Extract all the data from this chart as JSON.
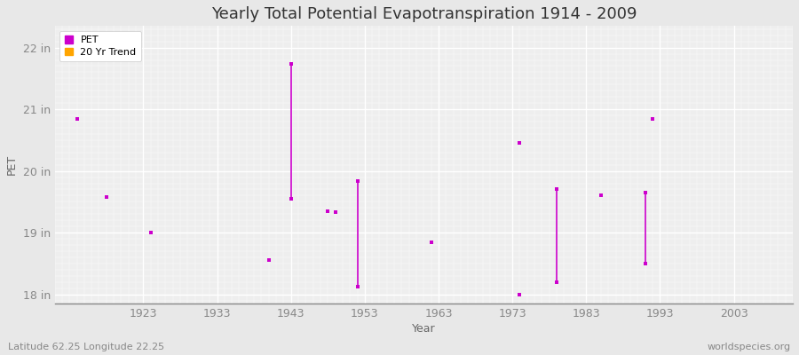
{
  "title": "Yearly Total Potential Evapotranspiration 1914 - 2009",
  "xlabel": "Year",
  "ylabel": "PET",
  "xlim": [
    1911,
    2011
  ],
  "ylim": [
    17.85,
    22.35
  ],
  "ytick_labels": [
    "18 in",
    "19 in",
    "20 in",
    "21 in",
    "22 in"
  ],
  "ytick_values": [
    18,
    19,
    20,
    21,
    22
  ],
  "xtick_values": [
    1923,
    1933,
    1943,
    1953,
    1963,
    1973,
    1983,
    1993,
    2003
  ],
  "fig_bg_color": "#e8e8e8",
  "plot_bg_color": "#eeeeee",
  "grid_major_color": "#ffffff",
  "grid_minor_color": "#dcdcdc",
  "pet_color": "#cc00cc",
  "trend_color": "#ffa500",
  "pet_points": [
    [
      1914,
      20.85
    ],
    [
      1918,
      19.58
    ],
    [
      1924,
      19.0
    ],
    [
      1940,
      18.55
    ],
    [
      1943,
      21.73
    ],
    [
      1943,
      19.55
    ],
    [
      1948,
      19.35
    ],
    [
      1949,
      19.33
    ],
    [
      1952,
      19.83
    ],
    [
      1952,
      18.12
    ],
    [
      1962,
      18.85
    ],
    [
      1974,
      18.0
    ],
    [
      1974,
      20.45
    ],
    [
      1979,
      18.2
    ],
    [
      1979,
      19.7
    ],
    [
      1985,
      19.6
    ],
    [
      1991,
      18.5
    ],
    [
      1991,
      19.65
    ],
    [
      1992,
      20.85
    ]
  ],
  "vertical_lines": [
    [
      1943,
      21.73,
      19.55
    ],
    [
      1952,
      19.83,
      18.12
    ],
    [
      1979,
      19.7,
      18.2
    ],
    [
      1991,
      19.65,
      18.5
    ]
  ],
  "subtitle": "Latitude 62.25 Longitude 22.25",
  "watermark": "worldspecies.org",
  "title_fontsize": 13,
  "axis_label_fontsize": 9,
  "tick_label_fontsize": 9,
  "legend_fontsize": 8
}
